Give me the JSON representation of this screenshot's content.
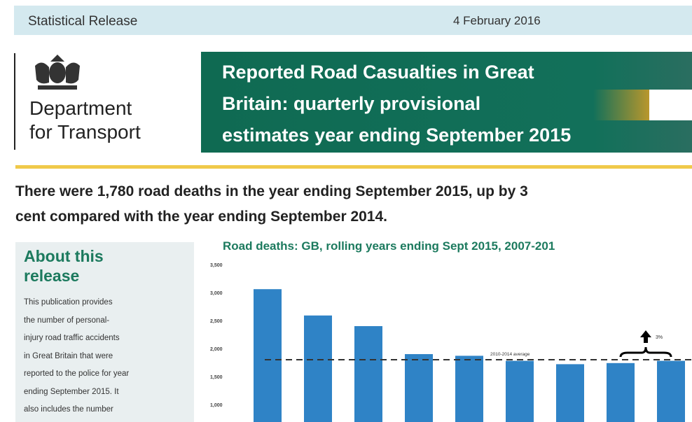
{
  "header": {
    "release_type": "Statistical Release",
    "date": "4 February 2016"
  },
  "logo": {
    "line1": "Department",
    "line2": "for Transport"
  },
  "title": {
    "line1": "Reported Road Casualties in Great",
    "line2": "Britain: quarterly provisional",
    "line3": "estimates year ending September 2015"
  },
  "headline": {
    "line1": "There were 1,780 road deaths in the year ending September 2015, up by 3",
    "line2": "cent compared with the year ending September 2014."
  },
  "about": {
    "title_line1": "About this",
    "title_line2": "release",
    "lines": [
      "This publication provides",
      "the number of personal-",
      "injury road traffic accidents",
      "in Great Britain that were",
      "reported to the police for year",
      "ending September 2015. It",
      "also includes the number"
    ]
  },
  "chart_data": {
    "type": "bar",
    "title": "Road deaths: GB, rolling years ending Sept 2015, 2007-201",
    "values": [
      3060,
      2590,
      2400,
      1900,
      1870,
      1780,
      1720,
      1740,
      1780
    ],
    "yticks": [
      "3,500",
      "3,000",
      "2,500",
      "2,000",
      "1,500",
      "1,000"
    ],
    "ylim": [
      1000,
      3500
    ],
    "reference_line": {
      "label": "2010-2014 average",
      "value": 1800
    },
    "annotation": {
      "label": "3%"
    },
    "bar_color": "#2f83c6"
  }
}
